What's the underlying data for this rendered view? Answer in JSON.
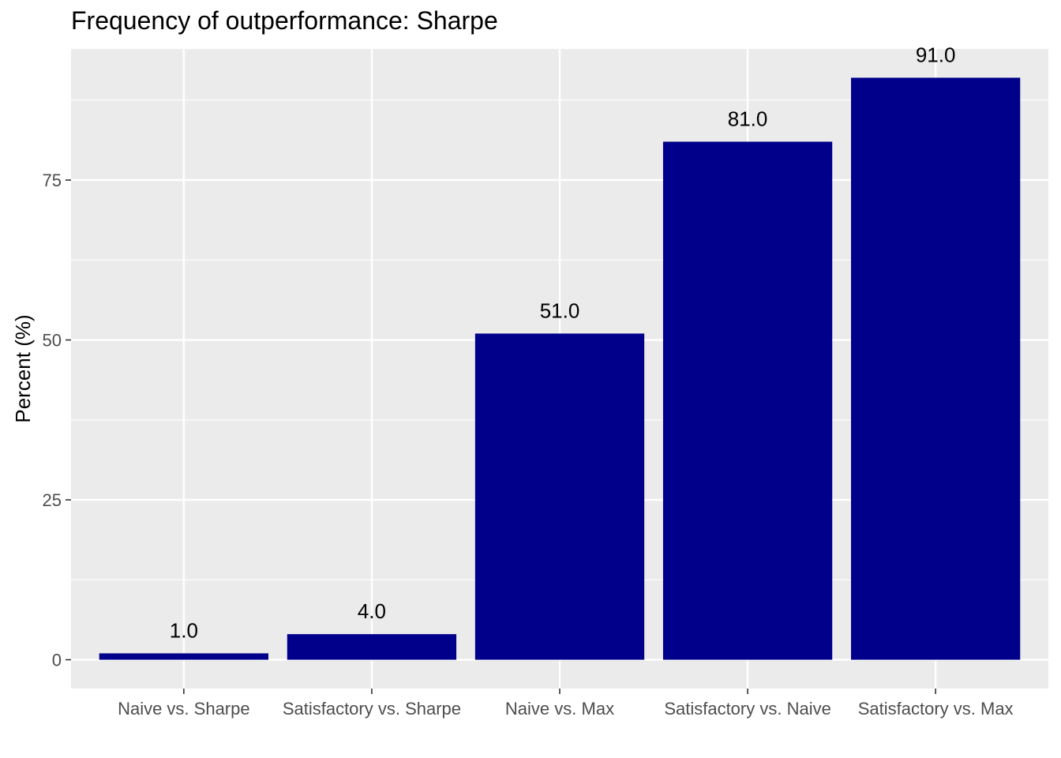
{
  "chart_data": {
    "type": "bar",
    "title": "Frequency of outperformance: Sharpe",
    "xlabel": "",
    "ylabel": "Percent (%)",
    "categories": [
      "Naive vs. Sharpe",
      "Satisfactory vs. Sharpe",
      "Naive vs. Max",
      "Satisfactory vs. Naive",
      "Satisfactory vs. Max"
    ],
    "values": [
      1.0,
      4.0,
      51.0,
      81.0,
      91.0
    ],
    "value_labels": [
      "1.0",
      "4.0",
      "51.0",
      "81.0",
      "91.0"
    ],
    "yticks": [
      0,
      25,
      50,
      75
    ],
    "ylim": [
      -4.5,
      95.5
    ],
    "grid": true,
    "legend": "none",
    "colors": {
      "bar": "#00008B",
      "panel": "#EBEBEB",
      "grid": "#FFFFFF",
      "tick_text": "#4D4D4D",
      "tick_mark": "#333333"
    }
  }
}
